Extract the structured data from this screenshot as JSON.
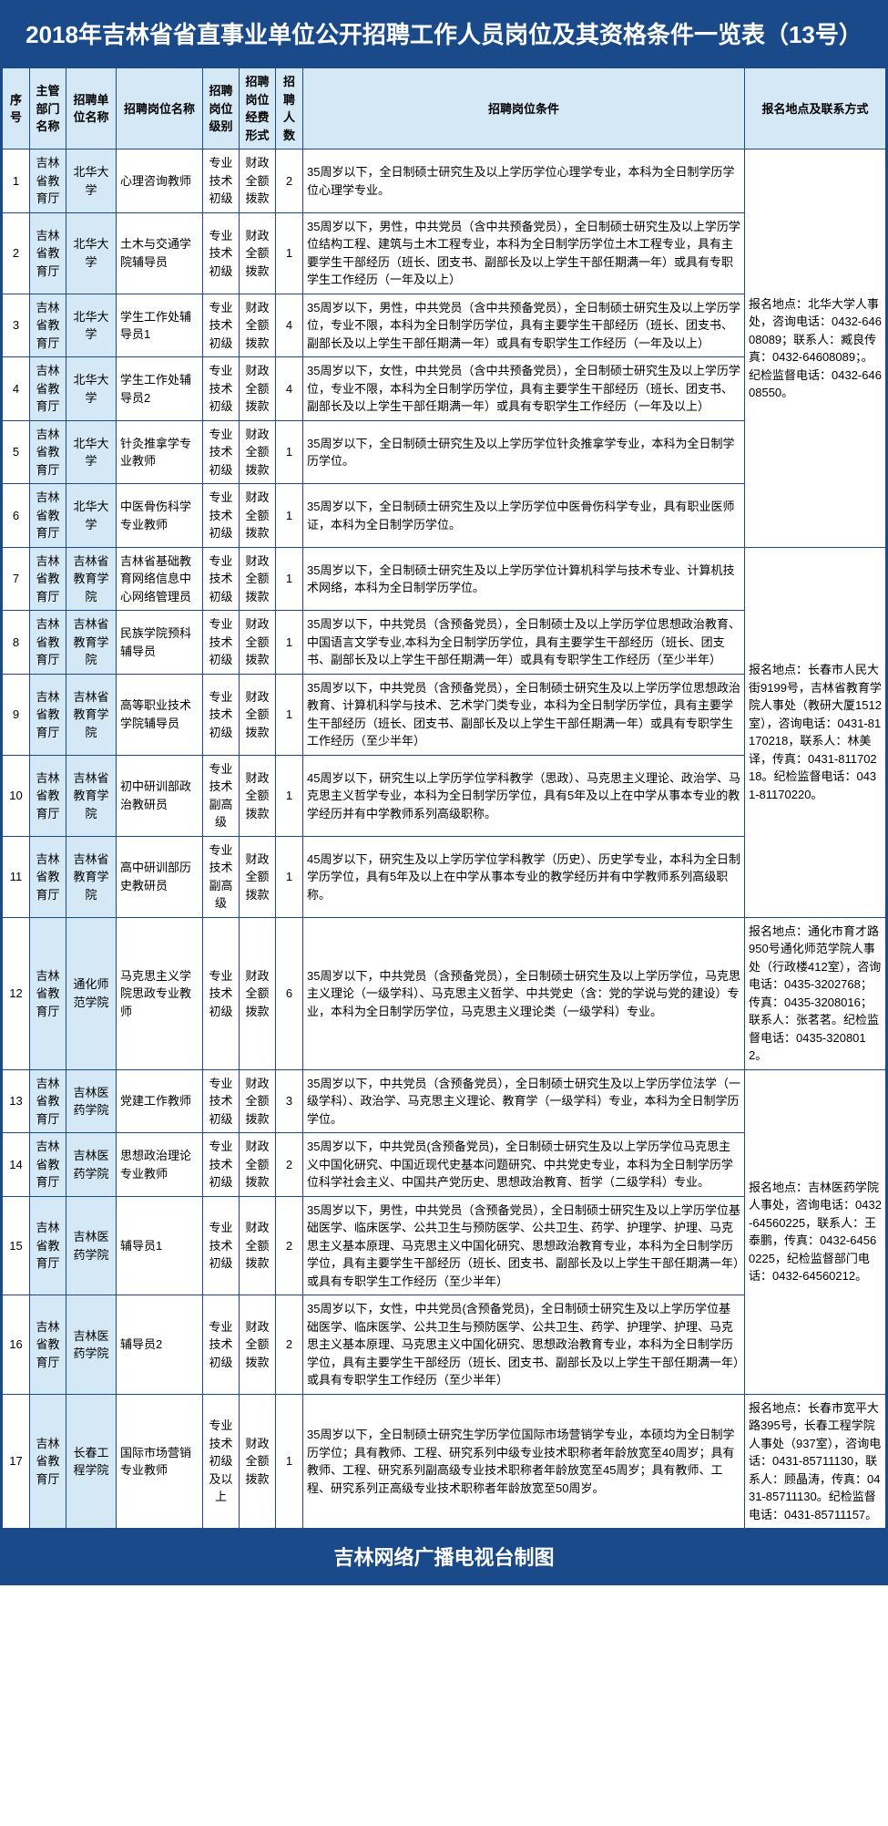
{
  "title": "2018年吉林省省直事业单位公开招聘工作人员岗位及其资格条件一览表（13号）",
  "footer": "吉林网络广播电视台制图",
  "headers": {
    "seq": "序号",
    "dept": "主管部门名称",
    "unit": "招聘单位名称",
    "post": "招聘岗位名称",
    "level": "招聘岗位级别",
    "fund": "招聘岗位经费形式",
    "count": "招聘人数",
    "req": "招聘岗位条件",
    "contact": "报名地点及联系方式"
  },
  "contacts": {
    "g1": "报名地点：北华大学人事处，咨询电话：0432-64608089；联系人：臧良传真：0432-64608089；。纪检监督电话：0432-64608550。",
    "g2": "报名地点：长春市人民大街9199号，吉林省教育学院人事处（教研大厦1512室），咨询电话：0431-81170218，联系人：林美译，传真：0431-81170218。纪检监督电话：0431-81170220。",
    "g3": "报名地点：通化市育才路950号通化师范学院人事处（行政楼412室），咨询电话：0435-3202768；传真：0435-3208016；联系人：张茗茗。纪检监督电话：0435-3208012。",
    "g4": "报名地点：吉林医药学院人事处，咨询电话：0432-64560225，联系人：王泰鹏，传真：0432-64560225，纪检监督部门电话：0432-64560212。",
    "g5": "报名地点：长春市宽平大路395号，长春工程学院人事处（937室），咨询电话：0431-85711130，联系人：顾晶涛，传真：0431-85711130。纪检监督电话：0431-85711157。"
  },
  "rows": [
    {
      "seq": "1",
      "dept": "吉林省教育厅",
      "unit": "北华大学",
      "post": "心理咨询教师",
      "level": "专业技术初级",
      "fund": "财政全额拨款",
      "count": "2",
      "req": "35周岁以下，全日制硕士研究生及以上学历学位心理学专业，本科为全日制学历学位心理学专业。",
      "contactKey": "g1",
      "contactRowspan": 6
    },
    {
      "seq": "2",
      "dept": "吉林省教育厅",
      "unit": "北华大学",
      "post": "土木与交通学院辅导员",
      "level": "专业技术初级",
      "fund": "财政全额拨款",
      "count": "1",
      "req": "35周岁以下，男性，中共党员（含中共预备党员），全日制硕士研究生及以上学历学位结构工程、建筑与土木工程专业，本科为全日制学历学位土木工程专业，具有主要学生干部经历（班长、团支书、副部长及以上学生干部任期满一年）或具有专职学生工作经历（一年及以上）"
    },
    {
      "seq": "3",
      "dept": "吉林省教育厅",
      "unit": "北华大学",
      "post": "学生工作处辅导员1",
      "level": "专业技术初级",
      "fund": "财政全额拨款",
      "count": "4",
      "req": "35周岁以下，男性，中共党员（含中共预备党员），全日制硕士研究生及以上学历学位，专业不限，本科为全日制学历学位，具有主要学生干部经历（班长、团支书、副部长及以上学生干部任期满一年）或具有专职学生工作经历（一年及以上）"
    },
    {
      "seq": "4",
      "dept": "吉林省教育厅",
      "unit": "北华大学",
      "post": "学生工作处辅导员2",
      "level": "专业技术初级",
      "fund": "财政全额拨款",
      "count": "4",
      "req": "35周岁以下，女性，中共党员（含中共预备党员），全日制硕士研究生及以上学历学位，专业不限，本科为全日制学历学位，具有主要学生干部经历（班长、团支书、副部长及以上学生干部任期满一年）或具有专职学生工作经历（一年及以上）"
    },
    {
      "seq": "5",
      "dept": "吉林省教育厅",
      "unit": "北华大学",
      "post": "针灸推拿学专业教师",
      "level": "专业技术初级",
      "fund": "财政全额拨款",
      "count": "1",
      "req": "35周岁以下，全日制硕士研究生及以上学历学位针灸推拿学专业，本科为全日制学历学位。"
    },
    {
      "seq": "6",
      "dept": "吉林省教育厅",
      "unit": "北华大学",
      "post": "中医骨伤科学专业教师",
      "level": "专业技术初级",
      "fund": "财政全额拨款",
      "count": "1",
      "req": "35周岁以下，全日制硕士研究生及以上学历学位中医骨伤科学专业，具有职业医师证，本科为全日制学历学位。"
    },
    {
      "seq": "7",
      "dept": "吉林省教育厅",
      "unit": "吉林省教育学院",
      "post": "吉林省基础教育网络信息中心网络管理员",
      "level": "专业技术初级",
      "fund": "财政全额拨款",
      "count": "1",
      "req": "35周岁以下，全日制硕士研究生及以上学历学位计算机科学与技术专业、计算机技术网络，本科为全日制学历学位。",
      "contactKey": "g2",
      "contactRowspan": 5
    },
    {
      "seq": "8",
      "dept": "吉林省教育厅",
      "unit": "吉林省教育学院",
      "post": "民族学院预科辅导员",
      "level": "专业技术初级",
      "fund": "财政全额拨款",
      "count": "1",
      "req": "35周岁以下，中共党员（含预备党员），全日制硕士及以上学历学位思想政治教育、中国语言文学专业,本科为全日制学历学位，具有主要学生干部经历（班长、团支书、副部长及以上学生干部任期满一年）或具有专职学生工作经历（至少半年）"
    },
    {
      "seq": "9",
      "dept": "吉林省教育厅",
      "unit": "吉林省教育学院",
      "post": "高等职业技术学院辅导员",
      "level": "专业技术初级",
      "fund": "财政全额拨款",
      "count": "1",
      "req": "35周岁以下，中共党员（含预备党员），全日制硕士研究生及以上学历学位思想政治教育、计算机科学与技术、艺术学门类专业，本科为全日制学历学位，具有主要学生干部经历（班长、团支书、副部长及以上学生干部任期满一年）或具有专职学生工作经历（至少半年）"
    },
    {
      "seq": "10",
      "dept": "吉林省教育厅",
      "unit": "吉林省教育学院",
      "post": "初中研训部政治教研员",
      "level": "专业技术副高级",
      "fund": "财政全额拨款",
      "count": "1",
      "req": "45周岁以下，研究生以上学历学位学科教学（思政）、马克思主义理论、政治学、马克思主义哲学专业，本科为全日制学历学位，具有5年及以上在中学从事本专业的教学经历并有中学教师系列高级职称。"
    },
    {
      "seq": "11",
      "dept": "吉林省教育厅",
      "unit": "吉林省教育学院",
      "post": "高中研训部历史教研员",
      "level": "专业技术副高级",
      "fund": "财政全额拨款",
      "count": "1",
      "req": "45周岁以下，研究生及以上学历学位学科教学（历史）、历史学专业，本科为全日制学历学位，具有5年及以上在中学从事本专业的教学经历并有中学教师系列高级职称。"
    },
    {
      "seq": "12",
      "dept": "吉林省教育厅",
      "unit": "通化师范学院",
      "post": "马克思主义学院思政专业教师",
      "level": "专业技术初级",
      "fund": "财政全额拨款",
      "count": "6",
      "req": "35周岁以下，中共党员（含预备党员），全日制硕士研究生及以上学历学位，马克思主义理论（一级学科）、马克思主义哲学、中共党史（含：党的学说与党的建设）专业，本科为全日制学历学位，马克思主义理论类（一级学科）专业。",
      "contactKey": "g3",
      "contactRowspan": 1
    },
    {
      "seq": "13",
      "dept": "吉林省教育厅",
      "unit": "吉林医药学院",
      "post": "党建工作教师",
      "level": "专业技术初级",
      "fund": "财政全额拨款",
      "count": "3",
      "req": "35周岁以下，中共党员（含预备党员），全日制硕士研究生及以上学历学位法学（一级学科）、政治学、马克思主义理论、教育学（一级学科）专业，本科为全日制学历学位。",
      "contactKey": "g4",
      "contactRowspan": 4
    },
    {
      "seq": "14",
      "dept": "吉林省教育厅",
      "unit": "吉林医药学院",
      "post": "思想政治理论专业教师",
      "level": "专业技术初级",
      "fund": "财政全额拨款",
      "count": "2",
      "req": "35周岁以下，中共党员(含预备党员)，全日制硕士研究生及以上学历学位马克思主义中国化研究、中国近现代史基本问题研究、中共党史专业，本科为全日制学历学位科学社会主义、中国共产党历史、思想政治教育、哲学（二级学科）专业。"
    },
    {
      "seq": "15",
      "dept": "吉林省教育厅",
      "unit": "吉林医药学院",
      "post": "辅导员1",
      "level": "专业技术初级",
      "fund": "财政全额拨款",
      "count": "2",
      "req": "35周岁以下，男性，中共党员（含预备党员），全日制硕士研究生及以上学历学位基础医学、临床医学、公共卫生与预防医学、公共卫生、药学、护理学、护理、马克思主义基本原理、马克思主义中国化研究、思想政治教育专业，本科为全日制学历学位，具有主要学生干部经历（班长、团支书、副部长及以上学生干部任期满一年）或具有专职学生工作经历（至少半年）"
    },
    {
      "seq": "16",
      "dept": "吉林省教育厅",
      "unit": "吉林医药学院",
      "post": "辅导员2",
      "level": "专业技术初级",
      "fund": "财政全额拨款",
      "count": "2",
      "req": "35周岁以下，女性，中共党员(含预备党员)，全日制硕士研究生及以上学历学位基础医学、临床医学、公共卫生与预防医学、公共卫生、药学、护理学、护理、马克思主义基本原理、马克思主义中国化研究、思想政治教育专业，本科为全日制学历学位，具有主要学生干部经历（班长、团支书、副部长及以上学生干部任期满一年）或具有专职学生工作经历（至少半年）"
    },
    {
      "seq": "17",
      "dept": "吉林省教育厅",
      "unit": "长春工程学院",
      "post": "国际市场营销专业教师",
      "level": "专业技术初级及以上",
      "fund": "财政全额拨款",
      "count": "1",
      "req": "35周岁以下，全日制硕士研究生学历学位国际市场营销学专业，本硕均为全日制学历学位；具有教师、工程、研究系列中级专业技术职称者年龄放宽至40周岁；具有教师、工程、研究系列副高级专业技术职称者年龄放宽至45周岁；具有教师、工程、研究系列正高级专业技术职称者年龄放宽至50周岁。",
      "contactKey": "g5",
      "contactRowspan": 1
    }
  ]
}
